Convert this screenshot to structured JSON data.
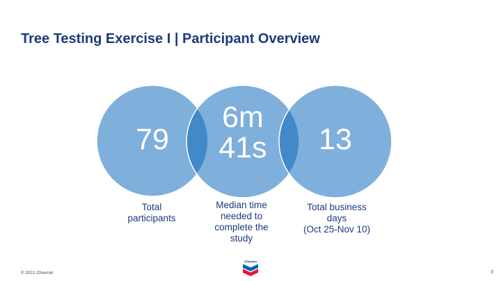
{
  "slide": {
    "title": "Tree Testing Exercise I | Participant Overview",
    "page_number": "3",
    "copyright": "© 2021 Chevron"
  },
  "infographic": {
    "type": "venn-circles",
    "stats": [
      {
        "value": "79",
        "value_lines": [
          "79"
        ],
        "label": "Total participants",
        "label_lines": [
          "Total",
          "participants"
        ]
      },
      {
        "value": "6m 41s",
        "value_lines": [
          "6m",
          "41s"
        ],
        "label": "Median time needed to complete the study",
        "label_lines": [
          "Median time",
          "needed to",
          "complete the",
          "study"
        ]
      },
      {
        "value": "13",
        "value_lines": [
          "13"
        ],
        "label": "Total business days (Oct 25-Nov 10)",
        "label_lines": [
          "Total business",
          "days",
          "(Oct 25-Nov 10)"
        ]
      }
    ]
  },
  "logo": {
    "wordmark": "Chevron"
  },
  "colors": {
    "title_navy": "#1a3a7c",
    "circle_fill_rgba": "rgba(10,102,186,0.52)",
    "circle_light_rendered": "#7fafdb",
    "circle_overlap_rendered": "#4288c5",
    "value_text": "#ffffff",
    "logo_blue": "#0066b2",
    "logo_red": "#e21836",
    "background": "#ffffff"
  }
}
